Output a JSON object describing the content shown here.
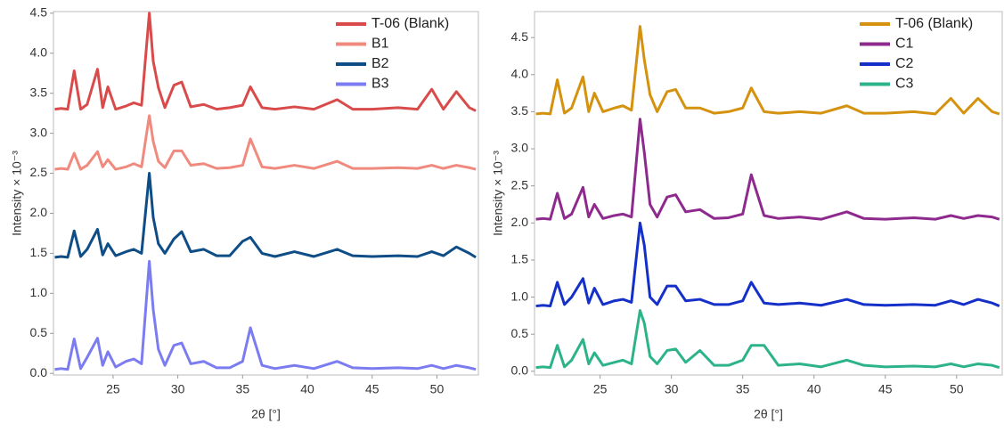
{
  "chart_data": [
    {
      "type": "line",
      "xlabel": "2θ [°]",
      "ylabel": "Intensity × 10⁻³",
      "x": [
        20.5,
        21,
        21.5,
        22,
        22.5,
        23,
        23.8,
        24.2,
        24.6,
        25.2,
        26,
        26.6,
        27.2,
        27.8,
        28.1,
        28.5,
        29,
        29.7,
        30.3,
        31,
        32,
        33,
        34,
        35,
        35.6,
        36.5,
        37.5,
        39,
        40.5,
        42.3,
        43.5,
        45,
        47,
        48.5,
        49.6,
        50.5,
        51.5,
        52.5,
        53
      ],
      "xlim": [
        20.4,
        53.2
      ],
      "xticks": [
        25,
        30,
        35,
        40,
        45,
        50
      ],
      "ylim": [
        -0.02,
        4.52
      ],
      "yticks": [
        {
          "value": 0,
          "label": "0.0"
        },
        0.5,
        {
          "value": 1,
          "label": "1.0"
        },
        1.5,
        {
          "value": 2,
          "label": "2.0"
        },
        2.5,
        {
          "value": 3,
          "label": "3.0"
        },
        3.5,
        {
          "value": 4,
          "label": "4.0"
        },
        4.5
      ],
      "legend": "upper right",
      "series": [
        {
          "name": "T-06 (Blank)",
          "color": "#d94b4b",
          "values": [
            3.3,
            3.31,
            3.3,
            3.78,
            3.3,
            3.36,
            3.8,
            3.32,
            3.58,
            3.3,
            3.34,
            3.38,
            3.35,
            4.5,
            3.9,
            3.57,
            3.32,
            3.6,
            3.64,
            3.33,
            3.36,
            3.3,
            3.32,
            3.35,
            3.58,
            3.32,
            3.3,
            3.33,
            3.3,
            3.42,
            3.3,
            3.3,
            3.32,
            3.3,
            3.55,
            3.3,
            3.52,
            3.32,
            3.28
          ]
        },
        {
          "name": "B1",
          "color": "#f08a7e",
          "values": [
            2.55,
            2.56,
            2.55,
            2.75,
            2.55,
            2.6,
            2.77,
            2.58,
            2.67,
            2.55,
            2.58,
            2.62,
            2.58,
            3.22,
            2.9,
            2.65,
            2.57,
            2.78,
            2.78,
            2.6,
            2.62,
            2.56,
            2.57,
            2.6,
            2.93,
            2.58,
            2.56,
            2.6,
            2.56,
            2.65,
            2.56,
            2.56,
            2.57,
            2.56,
            2.6,
            2.56,
            2.6,
            2.57,
            2.55
          ]
        },
        {
          "name": "B2",
          "color": "#0e4d85",
          "values": [
            1.45,
            1.46,
            1.45,
            1.78,
            1.46,
            1.55,
            1.8,
            1.48,
            1.62,
            1.47,
            1.52,
            1.55,
            1.5,
            2.5,
            1.95,
            1.62,
            1.5,
            1.68,
            1.77,
            1.52,
            1.55,
            1.47,
            1.47,
            1.65,
            1.7,
            1.5,
            1.46,
            1.52,
            1.46,
            1.55,
            1.47,
            1.46,
            1.47,
            1.46,
            1.52,
            1.47,
            1.58,
            1.5,
            1.45
          ]
        },
        {
          "name": "B3",
          "color": "#7b7cf0",
          "values": [
            0.05,
            0.06,
            0.05,
            0.43,
            0.06,
            0.2,
            0.44,
            0.1,
            0.27,
            0.08,
            0.15,
            0.18,
            0.12,
            1.4,
            0.8,
            0.3,
            0.1,
            0.35,
            0.38,
            0.12,
            0.15,
            0.07,
            0.07,
            0.15,
            0.57,
            0.1,
            0.06,
            0.1,
            0.06,
            0.15,
            0.07,
            0.06,
            0.07,
            0.06,
            0.1,
            0.06,
            0.1,
            0.07,
            0.05
          ]
        }
      ]
    },
    {
      "type": "line",
      "xlabel": "2θ [°]",
      "ylabel": "Intensity × 10⁻³",
      "x": [
        20.5,
        21,
        21.5,
        22,
        22.5,
        23,
        23.8,
        24.2,
        24.6,
        25.2,
        26,
        26.6,
        27.2,
        27.8,
        28.1,
        28.5,
        29,
        29.7,
        30.3,
        31,
        32,
        33,
        34,
        35,
        35.6,
        36.5,
        37.5,
        39,
        40.5,
        42.3,
        43.5,
        45,
        47,
        48.5,
        49.6,
        50.5,
        51.5,
        52.5,
        53
      ],
      "xlim": [
        20.4,
        53.2
      ],
      "xticks": [
        25,
        30,
        35,
        40,
        45,
        50
      ],
      "ylim": [
        -0.05,
        4.85
      ],
      "yticks": [
        {
          "value": 0,
          "label": "0.0"
        },
        0.5,
        {
          "value": 1,
          "label": "1.0"
        },
        1.5,
        {
          "value": 2,
          "label": "2.0"
        },
        2.5,
        {
          "value": 3,
          "label": "3.0"
        },
        3.5,
        {
          "value": 4,
          "label": "4.0"
        },
        4.5
      ],
      "legend": "upper right",
      "series": [
        {
          "name": "T-06 (Blank)",
          "color": "#d4920f",
          "values": [
            3.47,
            3.48,
            3.47,
            3.93,
            3.48,
            3.55,
            3.97,
            3.5,
            3.75,
            3.5,
            3.55,
            3.58,
            3.52,
            4.65,
            4.2,
            3.73,
            3.5,
            3.77,
            3.8,
            3.55,
            3.55,
            3.48,
            3.5,
            3.55,
            3.82,
            3.5,
            3.48,
            3.5,
            3.48,
            3.58,
            3.48,
            3.48,
            3.5,
            3.47,
            3.68,
            3.48,
            3.68,
            3.5,
            3.47
          ]
        },
        {
          "name": "C1",
          "color": "#8e2a8e",
          "values": [
            2.05,
            2.06,
            2.05,
            2.4,
            2.06,
            2.12,
            2.48,
            2.08,
            2.25,
            2.06,
            2.1,
            2.12,
            2.08,
            3.4,
            2.95,
            2.25,
            2.08,
            2.35,
            2.38,
            2.15,
            2.18,
            2.06,
            2.07,
            2.12,
            2.65,
            2.1,
            2.06,
            2.08,
            2.05,
            2.15,
            2.06,
            2.05,
            2.07,
            2.05,
            2.1,
            2.06,
            2.1,
            2.08,
            2.05
          ]
        },
        {
          "name": "C2",
          "color": "#1430c8",
          "values": [
            0.88,
            0.89,
            0.88,
            1.2,
            0.9,
            1.0,
            1.25,
            0.92,
            1.12,
            0.9,
            0.95,
            0.97,
            0.93,
            2.0,
            1.7,
            1.0,
            0.9,
            1.15,
            1.15,
            0.95,
            0.97,
            0.9,
            0.9,
            0.95,
            1.2,
            0.92,
            0.9,
            0.92,
            0.89,
            0.97,
            0.9,
            0.89,
            0.9,
            0.89,
            0.95,
            0.9,
            0.97,
            0.92,
            0.88
          ]
        },
        {
          "name": "C3",
          "color": "#2db38a",
          "values": [
            0.05,
            0.06,
            0.05,
            0.35,
            0.06,
            0.15,
            0.43,
            0.1,
            0.25,
            0.08,
            0.12,
            0.15,
            0.1,
            0.82,
            0.65,
            0.2,
            0.1,
            0.28,
            0.3,
            0.12,
            0.28,
            0.08,
            0.08,
            0.15,
            0.35,
            0.35,
            0.08,
            0.1,
            0.06,
            0.15,
            0.08,
            0.06,
            0.07,
            0.06,
            0.1,
            0.06,
            0.1,
            0.08,
            0.05
          ]
        }
      ]
    }
  ]
}
